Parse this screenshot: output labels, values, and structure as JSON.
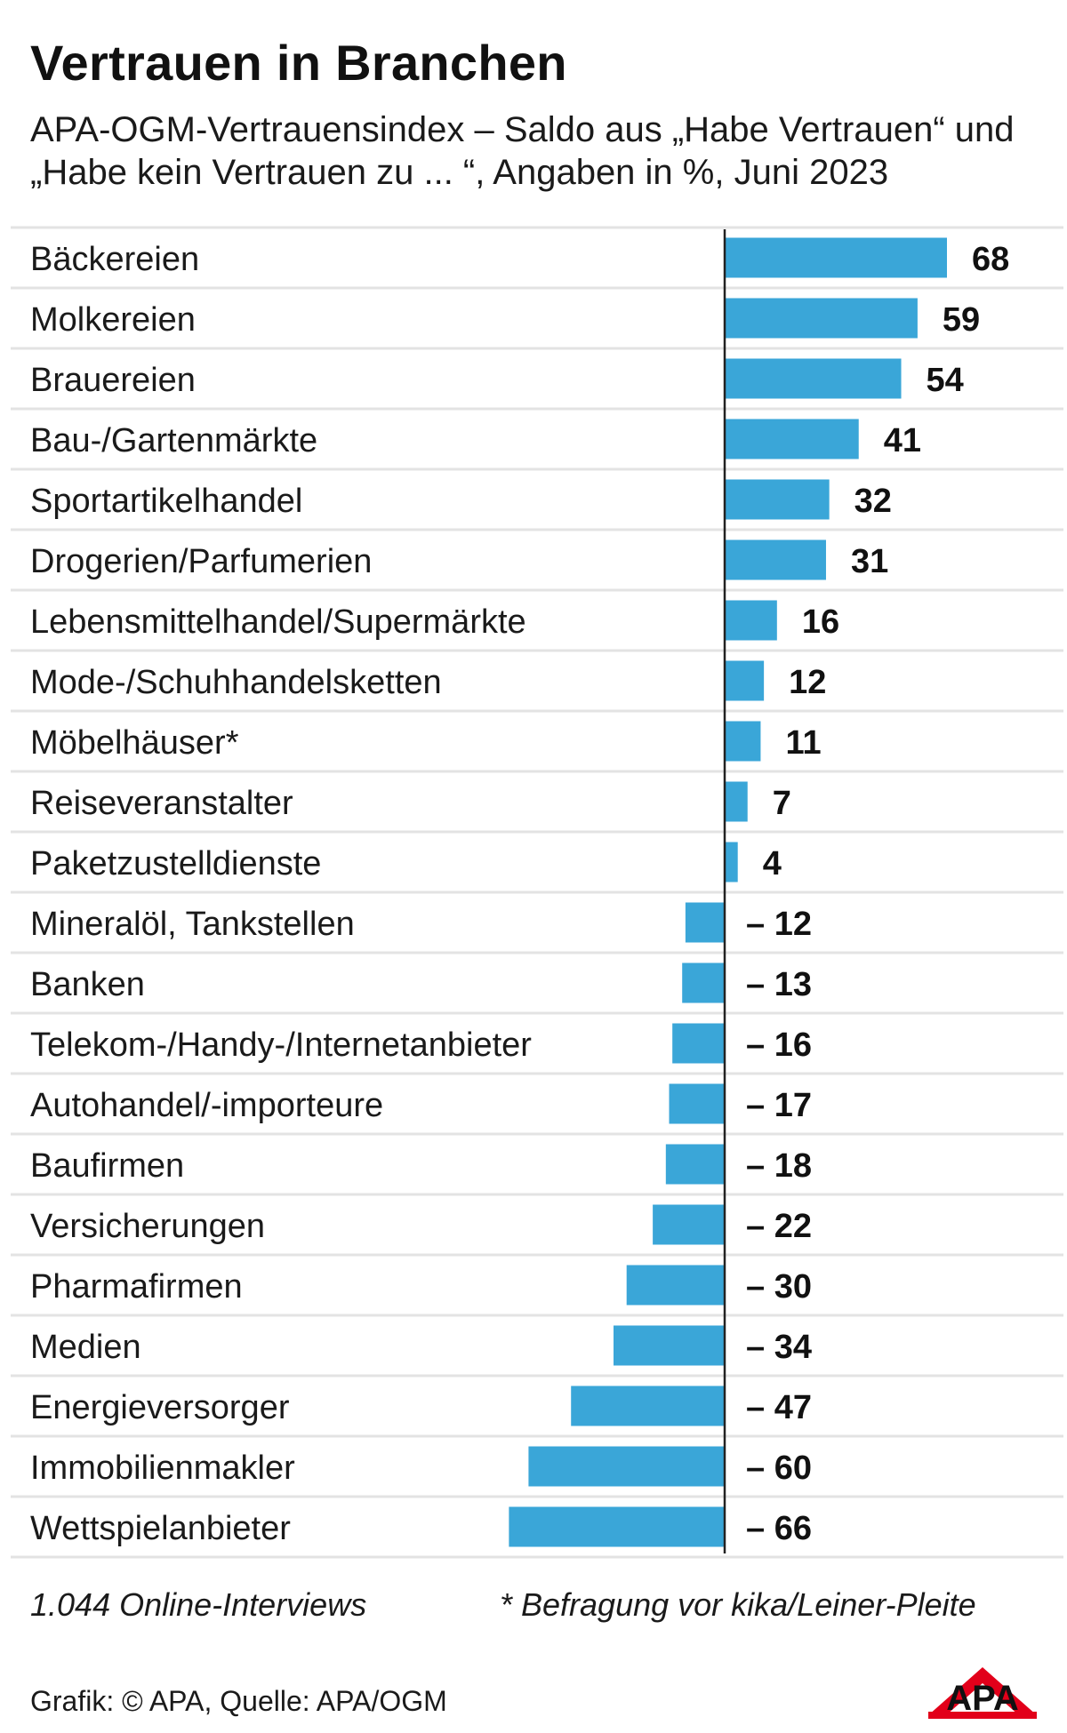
{
  "title": "Vertrauen in Branchen",
  "subtitle": "APA-OGM-Vertrauensindex – Saldo aus „Habe Vertrauen“ und „Habe kein Vertrauen zu ... “, Angaben in %, Juni 2023",
  "footnote_left": "1.044 Online-Interviews",
  "footnote_right": "* Befragung vor kika/Leiner-Pleite",
  "credit": "Grafik: © APA, Quelle: APA/OGM",
  "logo_text": "APA",
  "colors": {
    "bar": "#3aa6d8",
    "logo_red": "#e2001a",
    "text": "#1a1a1a",
    "row_line": "#e3e3e3"
  },
  "chart_data": {
    "type": "bar",
    "orientation": "horizontal",
    "categories": [
      "Bäckereien",
      "Molkereien",
      "Brauereien",
      "Bau-/Gartenmärkte",
      "Sportartikelhandel",
      "Drogerien/Parfumerien",
      "Lebensmittelhandel/Supermärkte",
      "Mode-/Schuhhandelsketten",
      "Möbelhäuser*",
      "Reiseveranstalter",
      "Paketzustelldienste",
      "Mineralöl, Tankstellen",
      "Banken",
      "Telekom-/Handy-/Internetanbieter",
      "Autohandel/-importeure",
      "Baufirmen",
      "Versicherungen",
      "Pharmafirmen",
      "Medien",
      "Energieversorger",
      "Immobilienmakler",
      "Wettspielanbieter"
    ],
    "values": [
      68,
      59,
      54,
      41,
      32,
      31,
      16,
      12,
      11,
      7,
      4,
      -12,
      -13,
      -16,
      -17,
      -18,
      -22,
      -30,
      -34,
      -47,
      -60,
      -66
    ],
    "value_labels": [
      "68",
      "59",
      "54",
      "41",
      "32",
      "31",
      "16",
      "12",
      "11",
      "7",
      "4",
      "– 12",
      "– 13",
      "– 16",
      "– 17",
      "– 18",
      "– 22",
      "– 30",
      "– 34",
      "– 47",
      "– 60",
      "– 66"
    ],
    "xlim": [
      -66,
      68
    ],
    "grid": false,
    "legend": "none"
  }
}
